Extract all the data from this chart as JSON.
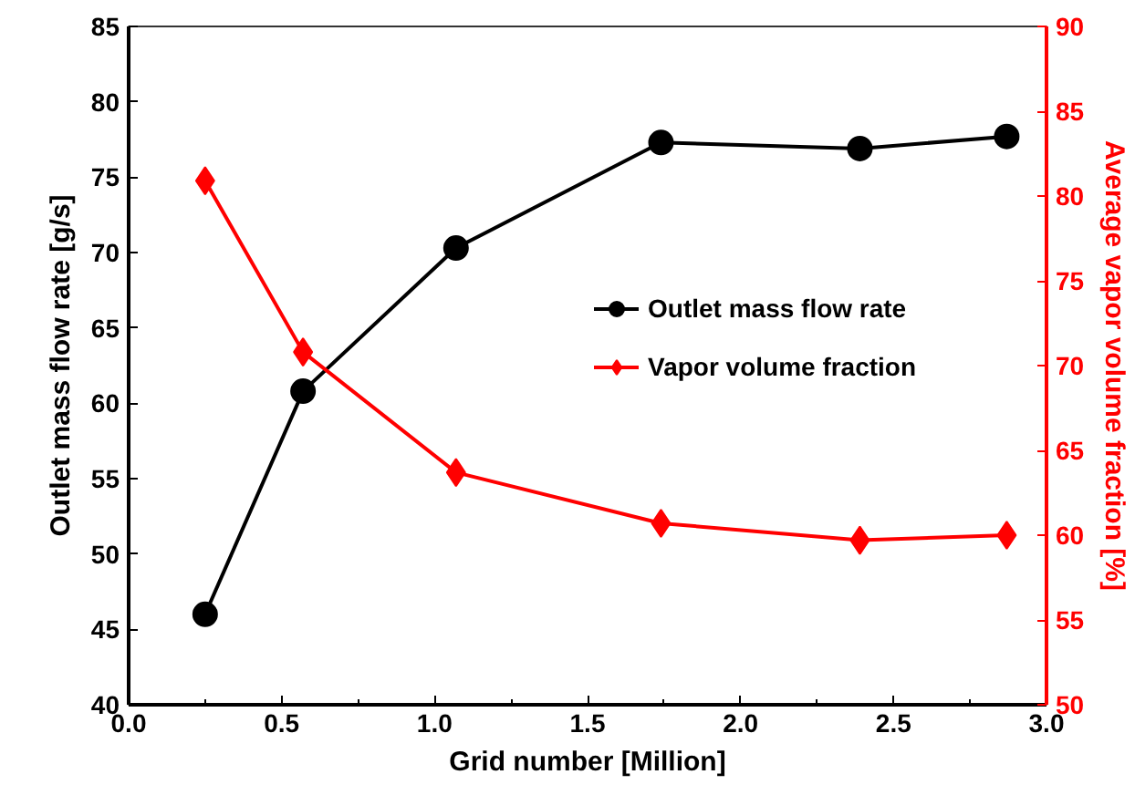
{
  "chart_data": {
    "type": "line",
    "xlabel": "Grid number [Million]",
    "ylabel": "Outlet mass flow rate [g/s]",
    "y2label": "Average vapor volume fraction [%]",
    "x": [
      0.25,
      0.57,
      1.07,
      1.74,
      2.39,
      2.87
    ],
    "series": [
      {
        "name": "Outlet mass flow rate",
        "color": "#000000",
        "marker": "circle",
        "values": [
          46.0,
          60.8,
          70.3,
          77.3,
          76.9,
          77.7
        ]
      },
      {
        "name": "Vapor volume fraction",
        "color": "#ff0000",
        "marker": "diamond",
        "axis": "y2",
        "values": [
          80.9,
          70.8,
          63.7,
          60.7,
          59.7,
          60.0
        ]
      }
    ],
    "xlim": [
      0,
      3
    ],
    "xticks": [
      {
        "value": 0,
        "label": "0.0"
      },
      {
        "value": 0.5,
        "label": "0.5"
      },
      {
        "value": 1,
        "label": "1.0"
      },
      {
        "value": 1.5,
        "label": "1.5"
      },
      {
        "value": 2,
        "label": "2.0"
      },
      {
        "value": 2.5,
        "label": "2.5"
      },
      {
        "value": 3,
        "label": "3.0"
      }
    ],
    "ylim": [
      40,
      85
    ],
    "yticks": [
      40,
      45,
      50,
      55,
      60,
      65,
      70,
      75,
      80,
      85
    ],
    "y2lim": [
      50,
      90
    ],
    "y2ticks": [
      50,
      55,
      60,
      65,
      70,
      75,
      80,
      85,
      90
    ],
    "grid": false,
    "legend": "right",
    "line_style": "solid"
  }
}
